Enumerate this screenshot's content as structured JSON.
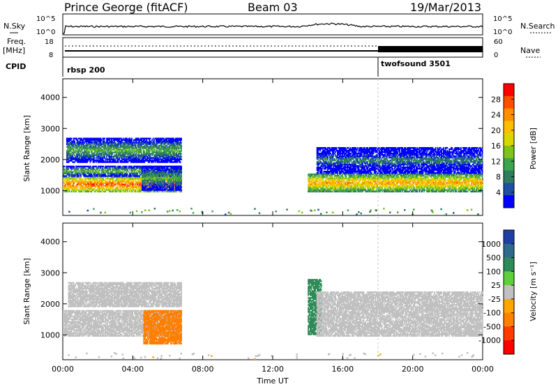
{
  "header": {
    "station": "Prince George (fitACF)",
    "beam": "Beam 03",
    "date": "19/Mar/2013"
  },
  "strip": {
    "nsky_label": "N.Sky",
    "nsky_ticks": [
      "10^5",
      "10^0"
    ],
    "nsearch_label": "N.Search",
    "nsearch_ticks": [
      "10^5",
      "10^0"
    ],
    "freq_label": "Freq.",
    "freq_unit": "[MHz]",
    "freq_ticks": [
      "18",
      "8"
    ],
    "nave_label": "Nave",
    "nave_ticks": [
      "60",
      "0"
    ],
    "cpid_label": "CPID",
    "cpid_segments": [
      {
        "name": "rbsp 200",
        "start_hour": 0,
        "end_hour": 18
      },
      {
        "name": "twofsound 3501",
        "start_hour": 18,
        "end_hour": 24
      }
    ]
  },
  "x_axis": {
    "label": "Time UT",
    "ticks": [
      "00:00",
      "04:00",
      "08:00",
      "12:00",
      "16:00",
      "20:00",
      "00:00"
    ],
    "range_hours": [
      0,
      24
    ]
  },
  "y_axis": {
    "label": "Slant Range [km]",
    "ticks": [
      "1000",
      "2000",
      "3000",
      "4000"
    ],
    "range_km": [
      200,
      4600
    ]
  },
  "power_colorbar": {
    "label": "Power [dB]",
    "ticks": [
      "28",
      "24",
      "20",
      "16",
      "12",
      "8",
      "4"
    ],
    "colors": [
      "#ff0000",
      "#ff4e00",
      "#ff8f00",
      "#ffbf00",
      "#d8d800",
      "#7fc31d",
      "#3da34c",
      "#2e7d5d",
      "#1d4fa3",
      "#0000ff"
    ]
  },
  "velocity_colorbar": {
    "label": "Velocity [m s⁻¹]",
    "ticks": [
      "1000",
      "500",
      "100",
      "25",
      "-25",
      "-100",
      "-500",
      "-1000"
    ],
    "colors": [
      "#1f3fa6",
      "#2e6a8c",
      "#2e8b57",
      "#5fcf3f",
      "#c0c0c0",
      "#ffa500",
      "#ff7f00",
      "#ff3b00",
      "#ff0000"
    ]
  },
  "chart_data": {
    "type": "heatmap",
    "title": "Prince George (fitACF)",
    "xlabel": "Time UT",
    "panels": [
      {
        "name": "Power [dB]",
        "ylabel": "Slant Range [km]",
        "ylim": [
          200,
          4600
        ],
        "xlim_hours": [
          0,
          24
        ],
        "echo_regions": [
          {
            "t0": 0.0,
            "t1": 6.8,
            "range_low": 950,
            "range_high": 1450,
            "value": 28
          },
          {
            "t0": 0.0,
            "t1": 6.8,
            "range_low": 1450,
            "range_high": 1800,
            "value": 16
          },
          {
            "t0": 0.2,
            "t1": 6.8,
            "range_low": 1900,
            "range_high": 2700,
            "value": 14
          },
          {
            "t0": 4.5,
            "t1": 6.8,
            "range_low": 1000,
            "range_high": 1800,
            "value": 14
          },
          {
            "t0": 14.0,
            "t1": 24.0,
            "range_low": 950,
            "range_high": 1550,
            "value": 24
          },
          {
            "t0": 14.5,
            "t1": 24.0,
            "range_low": 1550,
            "range_high": 2400,
            "value": 10
          }
        ]
      },
      {
        "name": "Velocity [m s⁻¹]",
        "ylabel": "Slant Range [km]",
        "ylim": [
          200,
          4600
        ],
        "xlim_hours": [
          0,
          24
        ],
        "echo_regions": [
          {
            "t0": 0.0,
            "t1": 6.8,
            "range_low": 950,
            "range_high": 1800,
            "value": 0
          },
          {
            "t0": 0.3,
            "t1": 6.8,
            "range_low": 1900,
            "range_high": 2700,
            "value": 0
          },
          {
            "t0": 4.6,
            "t1": 6.8,
            "range_low": 700,
            "range_high": 1800,
            "value": -120
          },
          {
            "t0": 14.0,
            "t1": 14.8,
            "range_low": 1000,
            "range_high": 2800,
            "value": 110
          },
          {
            "t0": 14.5,
            "t1": 24.0,
            "range_low": 950,
            "range_high": 2400,
            "value": 0
          }
        ]
      }
    ]
  }
}
